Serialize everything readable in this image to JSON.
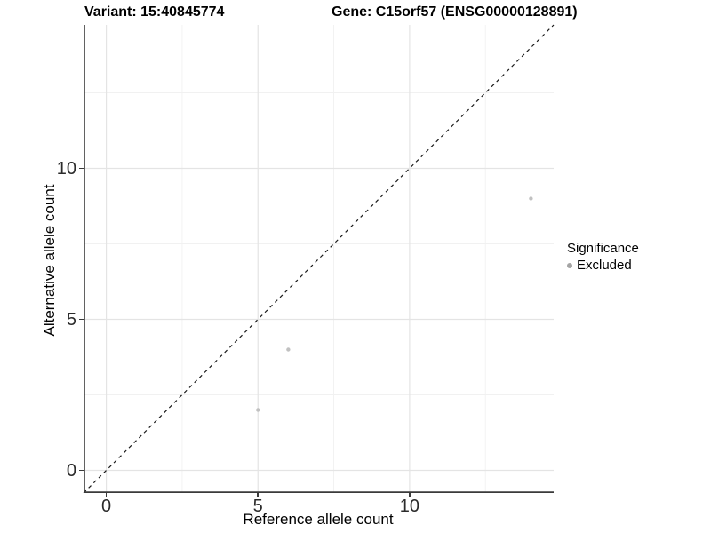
{
  "chart_data": {
    "type": "scatter",
    "title_left": "Variant: 15:40845774",
    "title_right": "Gene: C15orf57 (ENSG00000128891)",
    "xlabel": "Reference allele count",
    "ylabel": "Alternative allele count",
    "xlim": [
      -0.75,
      14.75
    ],
    "ylim": [
      -0.75,
      14.75
    ],
    "x_major_ticks": [
      0,
      5,
      10
    ],
    "y_major_ticks": [
      0,
      5,
      10
    ],
    "x_minor_ticks": [
      2.5,
      7.5,
      12.5
    ],
    "y_minor_ticks": [
      2.5,
      7.5,
      12.5
    ],
    "grid": true,
    "identity_line": {
      "style": "dashed",
      "from": [
        -0.75,
        -0.75
      ],
      "to": [
        14.75,
        14.75
      ],
      "color": "#1a1a1a"
    },
    "series": [
      {
        "name": "Excluded",
        "color": "#c1c1c1",
        "points": [
          {
            "x": 5,
            "y": 2
          },
          {
            "x": 6,
            "y": 4
          },
          {
            "x": 14,
            "y": 9
          }
        ]
      }
    ],
    "legend": {
      "title": "Significance",
      "position": "right",
      "items": [
        {
          "label": "Excluded",
          "color": "#a4a4a4"
        }
      ]
    },
    "colors": {
      "major_grid": "#e4e4e4",
      "minor_grid": "#f1f1f1",
      "axis_line": "#3a3a3a",
      "background": "#ffffff"
    }
  }
}
